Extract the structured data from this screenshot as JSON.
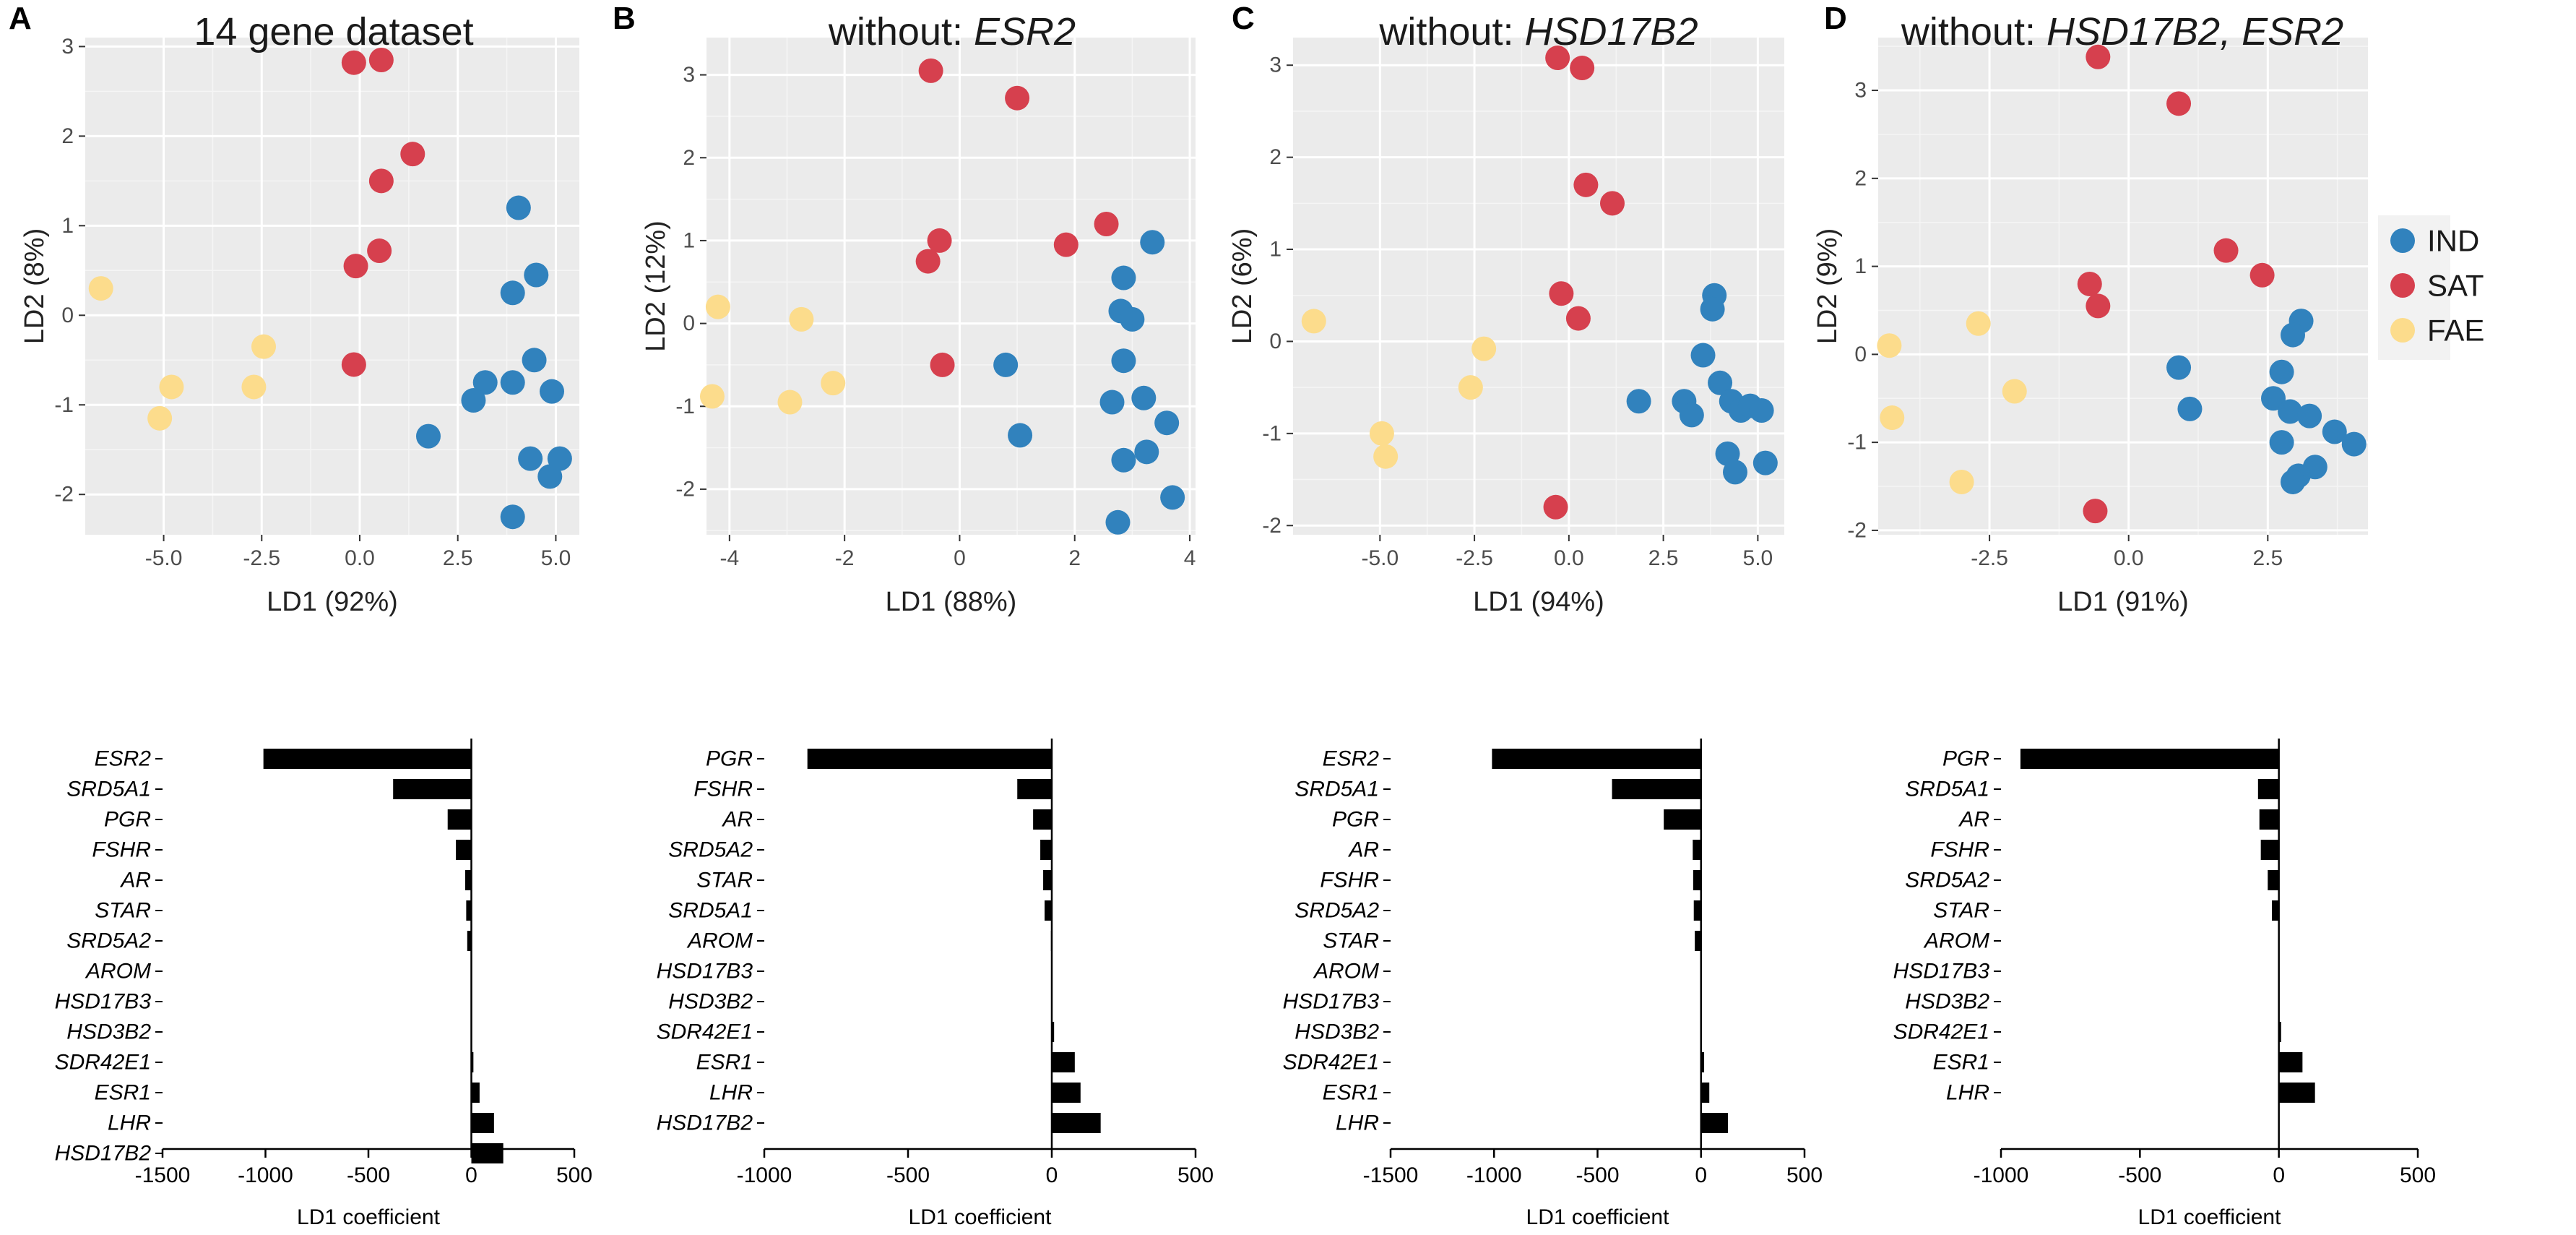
{
  "legend": {
    "title": "",
    "items": [
      {
        "label": "IND",
        "color": "#3182bd"
      },
      {
        "label": "SAT",
        "color": "#d6404e"
      },
      {
        "label": "FAE",
        "color": "#fcdc8c"
      }
    ]
  },
  "colors": {
    "IND": "#3182bd",
    "SAT": "#d6404e",
    "FAE": "#fcdc8c",
    "panel_bg": "#ebebeb",
    "bar": "#000000"
  },
  "chart_data": [
    {
      "type": "scatter",
      "panel_label": "A",
      "title_plain": "14 gene dataset",
      "title_italic": "",
      "xlabel": "LD1 (92%)",
      "ylabel": "LD2 (8%)",
      "xlim": [
        -7,
        5.6
      ],
      "ylim": [
        -2.45,
        3.1
      ],
      "xticks": [
        -5.0,
        -2.5,
        0.0,
        2.5,
        5.0
      ],
      "xticklabels": [
        "-5.0",
        "-2.5",
        "0.0",
        "2.5",
        "5.0"
      ],
      "yticks": [
        -2,
        -1,
        0,
        1,
        2,
        3
      ],
      "yticklabels": [
        "-2",
        "-1",
        "0",
        "1",
        "2",
        "3"
      ],
      "series": [
        {
          "name": "IND",
          "points": [
            [
              4.05,
              1.2
            ],
            [
              4.5,
              0.45
            ],
            [
              3.9,
              0.25
            ],
            [
              4.45,
              -0.5
            ],
            [
              4.9,
              -0.85
            ],
            [
              3.9,
              -0.75
            ],
            [
              3.2,
              -0.75
            ],
            [
              2.9,
              -0.95
            ],
            [
              1.75,
              -1.35
            ],
            [
              4.35,
              -1.6
            ],
            [
              4.85,
              -1.8
            ],
            [
              5.1,
              -1.6
            ],
            [
              3.9,
              -2.25
            ]
          ]
        },
        {
          "name": "SAT",
          "points": [
            [
              -0.15,
              2.82
            ],
            [
              0.55,
              2.85
            ],
            [
              1.35,
              1.8
            ],
            [
              0.55,
              1.5
            ],
            [
              0.5,
              0.72
            ],
            [
              -0.1,
              0.55
            ],
            [
              -0.15,
              -0.55
            ]
          ]
        },
        {
          "name": "FAE",
          "points": [
            [
              -6.6,
              0.3
            ],
            [
              -2.45,
              -0.35
            ],
            [
              -2.7,
              -0.8
            ],
            [
              -4.8,
              -0.8
            ],
            [
              -5.1,
              -1.15
            ]
          ]
        }
      ]
    },
    {
      "type": "scatter",
      "panel_label": "B",
      "title_plain": "without: ",
      "title_italic": "ESR2",
      "xlabel": "LD1 (88%)",
      "ylabel": "LD2 (12%)",
      "xlim": [
        -4.4,
        4.1
      ],
      "ylim": [
        -2.55,
        3.45
      ],
      "xticks": [
        -4,
        -2,
        0,
        2,
        4
      ],
      "xticklabels": [
        "-4",
        "-2",
        "0",
        "2",
        "4"
      ],
      "yticks": [
        -2,
        -1,
        0,
        1,
        2,
        3
      ],
      "yticklabels": [
        "-2",
        "-1",
        "0",
        "1",
        "2",
        "3"
      ],
      "series": [
        {
          "name": "IND",
          "points": [
            [
              3.35,
              0.98
            ],
            [
              2.85,
              0.55
            ],
            [
              2.8,
              0.15
            ],
            [
              3.0,
              0.05
            ],
            [
              2.85,
              -0.45
            ],
            [
              0.8,
              -0.5
            ],
            [
              3.2,
              -0.9
            ],
            [
              2.65,
              -0.95
            ],
            [
              3.6,
              -1.2
            ],
            [
              1.05,
              -1.35
            ],
            [
              3.25,
              -1.55
            ],
            [
              2.85,
              -1.65
            ],
            [
              3.7,
              -2.1
            ],
            [
              2.75,
              -2.4
            ]
          ]
        },
        {
          "name": "SAT",
          "points": [
            [
              -0.5,
              3.05
            ],
            [
              1.0,
              2.72
            ],
            [
              2.55,
              1.2
            ],
            [
              1.85,
              0.95
            ],
            [
              -0.35,
              1.0
            ],
            [
              -0.55,
              0.75
            ],
            [
              -0.3,
              -0.5
            ]
          ]
        },
        {
          "name": "FAE",
          "points": [
            [
              -4.2,
              0.2
            ],
            [
              -2.75,
              0.05
            ],
            [
              -2.2,
              -0.72
            ],
            [
              -4.3,
              -0.88
            ],
            [
              -2.95,
              -0.95
            ]
          ]
        }
      ]
    },
    {
      "type": "scatter",
      "panel_label": "C",
      "title_plain": "without: ",
      "title_italic": "HSD17B2",
      "xlabel": "LD1 (94%)",
      "ylabel": "LD2 (6%)",
      "xlim": [
        -7.3,
        5.7
      ],
      "ylim": [
        -2.1,
        3.3
      ],
      "xticks": [
        -5.0,
        -2.5,
        0.0,
        2.5,
        5.0
      ],
      "xticklabels": [
        "-5.0",
        "-2.5",
        "0.0",
        "2.5",
        "5.0"
      ],
      "yticks": [
        -2,
        -1,
        0,
        1,
        2,
        3
      ],
      "yticklabels": [
        "-2",
        "-1",
        "0",
        "1",
        "2",
        "3"
      ],
      "series": [
        {
          "name": "IND",
          "points": [
            [
              3.85,
              0.5
            ],
            [
              3.8,
              0.35
            ],
            [
              3.55,
              -0.15
            ],
            [
              4.0,
              -0.45
            ],
            [
              3.05,
              -0.65
            ],
            [
              3.25,
              -0.8
            ],
            [
              4.3,
              -0.65
            ],
            [
              4.55,
              -0.75
            ],
            [
              4.8,
              -0.7
            ],
            [
              5.1,
              -0.75
            ],
            [
              1.85,
              -0.65
            ],
            [
              4.2,
              -1.22
            ],
            [
              4.4,
              -1.42
            ],
            [
              5.2,
              -1.32
            ]
          ]
        },
        {
          "name": "SAT",
          "points": [
            [
              -0.3,
              3.08
            ],
            [
              0.35,
              2.97
            ],
            [
              0.45,
              1.7
            ],
            [
              1.15,
              1.5
            ],
            [
              -0.2,
              0.52
            ],
            [
              0.25,
              0.25
            ],
            [
              -0.35,
              -1.8
            ]
          ]
        },
        {
          "name": "FAE",
          "points": [
            [
              -6.75,
              0.22
            ],
            [
              -2.25,
              -0.08
            ],
            [
              -2.6,
              -0.5
            ],
            [
              -4.95,
              -1.0
            ],
            [
              -4.85,
              -1.25
            ]
          ]
        }
      ]
    },
    {
      "type": "scatter",
      "panel_label": "D",
      "title_plain": "without: ",
      "title_italic": "HSD17B2, ESR2",
      "xlabel": "LD1 (91%)",
      "ylabel": "LD2 (9%)",
      "xlim": [
        -4.5,
        4.3
      ],
      "ylim": [
        -2.05,
        3.6
      ],
      "xticks": [
        -2.5,
        0.0,
        2.5
      ],
      "xticklabels": [
        "-2.5",
        "0.0",
        "2.5"
      ],
      "yticks": [
        -2,
        -1,
        0,
        1,
        2,
        3
      ],
      "yticklabels": [
        "-2",
        "-1",
        "0",
        "1",
        "2",
        "3"
      ],
      "series": [
        {
          "name": "IND",
          "points": [
            [
              3.1,
              0.38
            ],
            [
              2.95,
              0.22
            ],
            [
              2.75,
              -0.2
            ],
            [
              0.9,
              -0.15
            ],
            [
              2.6,
              -0.5
            ],
            [
              2.9,
              -0.65
            ],
            [
              3.25,
              -0.7
            ],
            [
              1.1,
              -0.62
            ],
            [
              3.7,
              -0.88
            ],
            [
              4.05,
              -1.02
            ],
            [
              2.75,
              -1.0
            ],
            [
              3.35,
              -1.28
            ],
            [
              3.05,
              -1.38
            ],
            [
              2.95,
              -1.45
            ]
          ]
        },
        {
          "name": "SAT",
          "points": [
            [
              -0.55,
              3.38
            ],
            [
              0.9,
              2.85
            ],
            [
              1.75,
              1.18
            ],
            [
              2.4,
              0.9
            ],
            [
              -0.7,
              0.8
            ],
            [
              -0.55,
              0.55
            ],
            [
              -0.6,
              -1.78
            ]
          ]
        },
        {
          "name": "FAE",
          "points": [
            [
              -4.3,
              0.1
            ],
            [
              -2.7,
              0.35
            ],
            [
              -2.05,
              -0.42
            ],
            [
              -4.25,
              -0.72
            ],
            [
              -3.0,
              -1.45
            ]
          ]
        }
      ]
    },
    {
      "type": "bar",
      "orientation": "horizontal",
      "xlabel": "LD1 coefficient",
      "xlim": [
        -1500,
        500
      ],
      "xticks": [
        -1500,
        -1000,
        -500,
        0,
        500
      ],
      "xticklabels": [
        "-1500",
        "-1000",
        "-500",
        "0",
        "500"
      ],
      "categories": [
        "ESR2",
        "SRD5A1",
        "PGR",
        "FSHR",
        "AR",
        "STAR",
        "SRD5A2",
        "AROM",
        "HSD17B3",
        "HSD3B2",
        "SDR42E1",
        "ESR1",
        "LHR",
        "HSD17B2"
      ],
      "values": [
        -1010,
        -380,
        -115,
        -75,
        -30,
        -25,
        -20,
        -3,
        -2,
        -2,
        10,
        40,
        110,
        155
      ]
    },
    {
      "type": "bar",
      "orientation": "horizontal",
      "xlabel": "LD1 coefficient",
      "xlim": [
        -1000,
        500
      ],
      "xticks": [
        -1000,
        -500,
        0,
        500
      ],
      "xticklabels": [
        "-1000",
        "-500",
        "0",
        "500"
      ],
      "categories": [
        "PGR",
        "FSHR",
        "AR",
        "SRD5A2",
        "STAR",
        "SRD5A1",
        "AROM",
        "HSD17B3",
        "HSD3B2",
        "SDR42E1",
        "ESR1",
        "LHR",
        "HSD17B2"
      ],
      "values": [
        -850,
        -120,
        -65,
        -40,
        -30,
        -25,
        -3,
        -2,
        -2,
        8,
        80,
        100,
        170
      ]
    },
    {
      "type": "bar",
      "orientation": "horizontal",
      "xlabel": "LD1 coefficient",
      "xlim": [
        -1500,
        500
      ],
      "xticks": [
        -1500,
        -1000,
        -500,
        0,
        500
      ],
      "xticklabels": [
        "-1500",
        "-1000",
        "-500",
        "0",
        "500"
      ],
      "categories": [
        "ESR2",
        "SRD5A1",
        "PGR",
        "AR",
        "FSHR",
        "SRD5A2",
        "STAR",
        "AROM",
        "HSD17B3",
        "HSD3B2",
        "SDR42E1",
        "ESR1",
        "LHR"
      ],
      "values": [
        -1010,
        -430,
        -180,
        -40,
        -38,
        -35,
        -30,
        -3,
        -2,
        -2,
        15,
        40,
        130
      ]
    },
    {
      "type": "bar",
      "orientation": "horizontal",
      "xlabel": "LD1 coefficient",
      "xlim": [
        -1000,
        500
      ],
      "xticks": [
        -1000,
        -500,
        0,
        500
      ],
      "xticklabels": [
        "-1000",
        "-500",
        "0",
        "500"
      ],
      "categories": [
        "PGR",
        "SRD5A1",
        "AR",
        "FSHR",
        "SRD5A2",
        "STAR",
        "AROM",
        "HSD17B3",
        "HSD3B2",
        "SDR42E1",
        "ESR1",
        "LHR"
      ],
      "values": [
        -930,
        -75,
        -70,
        -65,
        -40,
        -25,
        -3,
        -2,
        -2,
        8,
        85,
        130
      ]
    }
  ]
}
